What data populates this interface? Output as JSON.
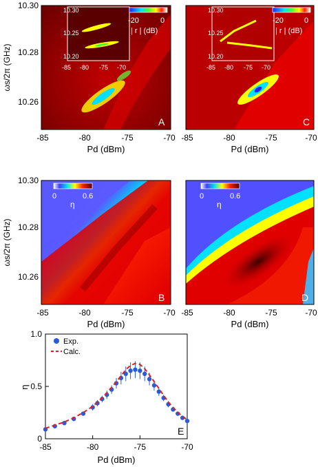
{
  "figure": {
    "ylabel_omega": "ωs/2π (GHz)",
    "xlabel_pd": "Pd (dBm)",
    "x_ticks": [
      "-85",
      "-80",
      "-75",
      "-70"
    ],
    "y_ticks_freq": [
      "10.30",
      "10.28",
      "10.26"
    ],
    "inset_x_ticks": [
      "-85",
      "-80",
      "-75",
      "-70"
    ],
    "inset_y_ticks": [
      "10.30",
      "10.25",
      "10.20"
    ],
    "colorbar_r": {
      "tick_left": "-20",
      "tick_right": "0",
      "label": "| r | (dB)"
    },
    "colorbar_eta": {
      "tick_left": "0",
      "tick_right": "0.6",
      "label": "η"
    },
    "panel_letters": [
      "A",
      "B",
      "C",
      "D",
      "E"
    ]
  },
  "colors": {
    "frame": "#000000",
    "heatmap_bg_dark": "#7a0000",
    "heatmap_red": "#e00000",
    "eta_blue": "#4040ff",
    "exp_marker": "#2a5bd7",
    "calc_line": "#e02020"
  },
  "chart_data": [
    {
      "panel": "A",
      "type": "heatmap",
      "xlabel": "Pd (dBm)",
      "ylabel": "ωs/2π (GHz)",
      "xlim": [
        -85,
        -70
      ],
      "ylim": [
        10.25,
        10.3
      ],
      "colorbar": {
        "label": "| r | (dB)",
        "range": [
          -20,
          0
        ]
      },
      "inset": {
        "xlim": [
          -85,
          -70
        ],
        "ylim": [
          10.2,
          10.3
        ]
      }
    },
    {
      "panel": "B",
      "type": "heatmap",
      "xlabel": "Pd (dBm)",
      "ylabel": "ωs/2π (GHz)",
      "xlim": [
        -85,
        -70
      ],
      "ylim": [
        10.25,
        10.3
      ],
      "colorbar": {
        "label": "η",
        "range": [
          0,
          0.6
        ]
      }
    },
    {
      "panel": "C",
      "type": "heatmap",
      "xlabel": "Pd (dBm)",
      "xlim": [
        -85,
        -70
      ],
      "ylim": [
        10.25,
        10.3
      ],
      "colorbar": {
        "label": "| r | (dB)",
        "range": [
          -20,
          0
        ]
      },
      "inset": {
        "xlim": [
          -85,
          -70
        ],
        "ylim": [
          10.2,
          10.3
        ]
      }
    },
    {
      "panel": "D",
      "type": "heatmap",
      "xlabel": "Pd (dBm)",
      "xlim": [
        -85,
        -70
      ],
      "ylim": [
        10.25,
        10.3
      ],
      "colorbar": {
        "label": "η",
        "range": [
          0,
          0.6
        ]
      }
    },
    {
      "panel": "E",
      "type": "scatter",
      "xlabel": "Pd (dBm)",
      "ylabel": "η",
      "xlim": [
        -85,
        -70
      ],
      "ylim": [
        0,
        1.0
      ],
      "x_ticks": [
        "-85",
        "-80",
        "-75",
        "-70"
      ],
      "y_ticks": [
        "0",
        "0.5",
        "1.0"
      ],
      "legend": {
        "placement": "top-left",
        "entries": [
          "Exp.",
          "Calc."
        ]
      },
      "series": [
        {
          "name": "Exp.",
          "x": [
            -85,
            -84,
            -83,
            -82,
            -81,
            -80,
            -79.5,
            -79,
            -78.5,
            -78,
            -77.5,
            -77,
            -76.5,
            -76,
            -75.5,
            -75,
            -74.5,
            -74,
            -73.5,
            -73,
            -72.5,
            -72,
            -71.5,
            -71,
            -70.5,
            -70
          ],
          "y": [
            0.09,
            0.12,
            0.15,
            0.19,
            0.24,
            0.3,
            0.34,
            0.38,
            0.42,
            0.47,
            0.53,
            0.58,
            0.62,
            0.65,
            0.66,
            0.65,
            0.62,
            0.57,
            0.51,
            0.45,
            0.39,
            0.33,
            0.28,
            0.24,
            0.2,
            0.17
          ],
          "yerr": [
            0.01,
            0.01,
            0.02,
            0.02,
            0.02,
            0.03,
            0.03,
            0.03,
            0.04,
            0.04,
            0.05,
            0.06,
            0.07,
            0.08,
            0.08,
            0.08,
            0.07,
            0.06,
            0.05,
            0.04,
            0.03,
            0.03,
            0.02,
            0.02,
            0.02,
            0.02
          ]
        },
        {
          "name": "Calc.",
          "x": [
            -85,
            -84,
            -83,
            -82,
            -81,
            -80,
            -79,
            -78,
            -77,
            -76.5,
            -76,
            -75.5,
            -75,
            -74.5,
            -74,
            -73,
            -72,
            -71,
            -70
          ],
          "y": [
            0.1,
            0.13,
            0.16,
            0.2,
            0.25,
            0.31,
            0.39,
            0.49,
            0.6,
            0.66,
            0.7,
            0.72,
            0.71,
            0.67,
            0.61,
            0.48,
            0.35,
            0.25,
            0.18
          ]
        }
      ]
    }
  ]
}
